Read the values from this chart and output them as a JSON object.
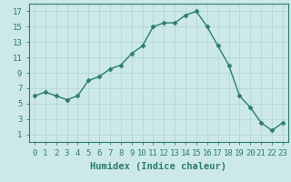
{
  "x": [
    0,
    1,
    2,
    3,
    4,
    5,
    6,
    7,
    8,
    9,
    10,
    11,
    12,
    13,
    14,
    15,
    16,
    17,
    18,
    19,
    20,
    21,
    22,
    23
  ],
  "y": [
    6,
    6.5,
    6,
    5.5,
    6,
    8,
    8.5,
    9.5,
    10,
    11.5,
    12.5,
    15,
    15.5,
    15.5,
    16.5,
    17,
    15,
    12.5,
    10,
    6,
    4.5,
    2.5,
    1.5,
    2.5
  ],
  "line_color": "#2d7d6b",
  "marker": "D",
  "background_color": "#cce8e8",
  "grid_color": "#b0d4d4",
  "xlabel": "Humidex (Indice chaleur)",
  "xlim": [
    -0.5,
    23.5
  ],
  "ylim": [
    0,
    18
  ],
  "yticks": [
    1,
    3,
    5,
    7,
    9,
    11,
    13,
    15,
    17
  ],
  "xticks": [
    0,
    1,
    2,
    3,
    4,
    5,
    6,
    7,
    8,
    9,
    10,
    11,
    12,
    13,
    14,
    15,
    16,
    17,
    18,
    19,
    20,
    21,
    22,
    23
  ],
  "xtick_labels": [
    "0",
    "1",
    "2",
    "3",
    "4",
    "5",
    "6",
    "7",
    "8",
    "9",
    "10",
    "11",
    "12",
    "13",
    "14",
    "15",
    "16",
    "17",
    "18",
    "19",
    "20",
    "21",
    "22",
    "23"
  ],
  "tick_fontsize": 6.5,
  "xlabel_fontsize": 7.5,
  "linewidth": 1.0,
  "markersize": 2.5
}
